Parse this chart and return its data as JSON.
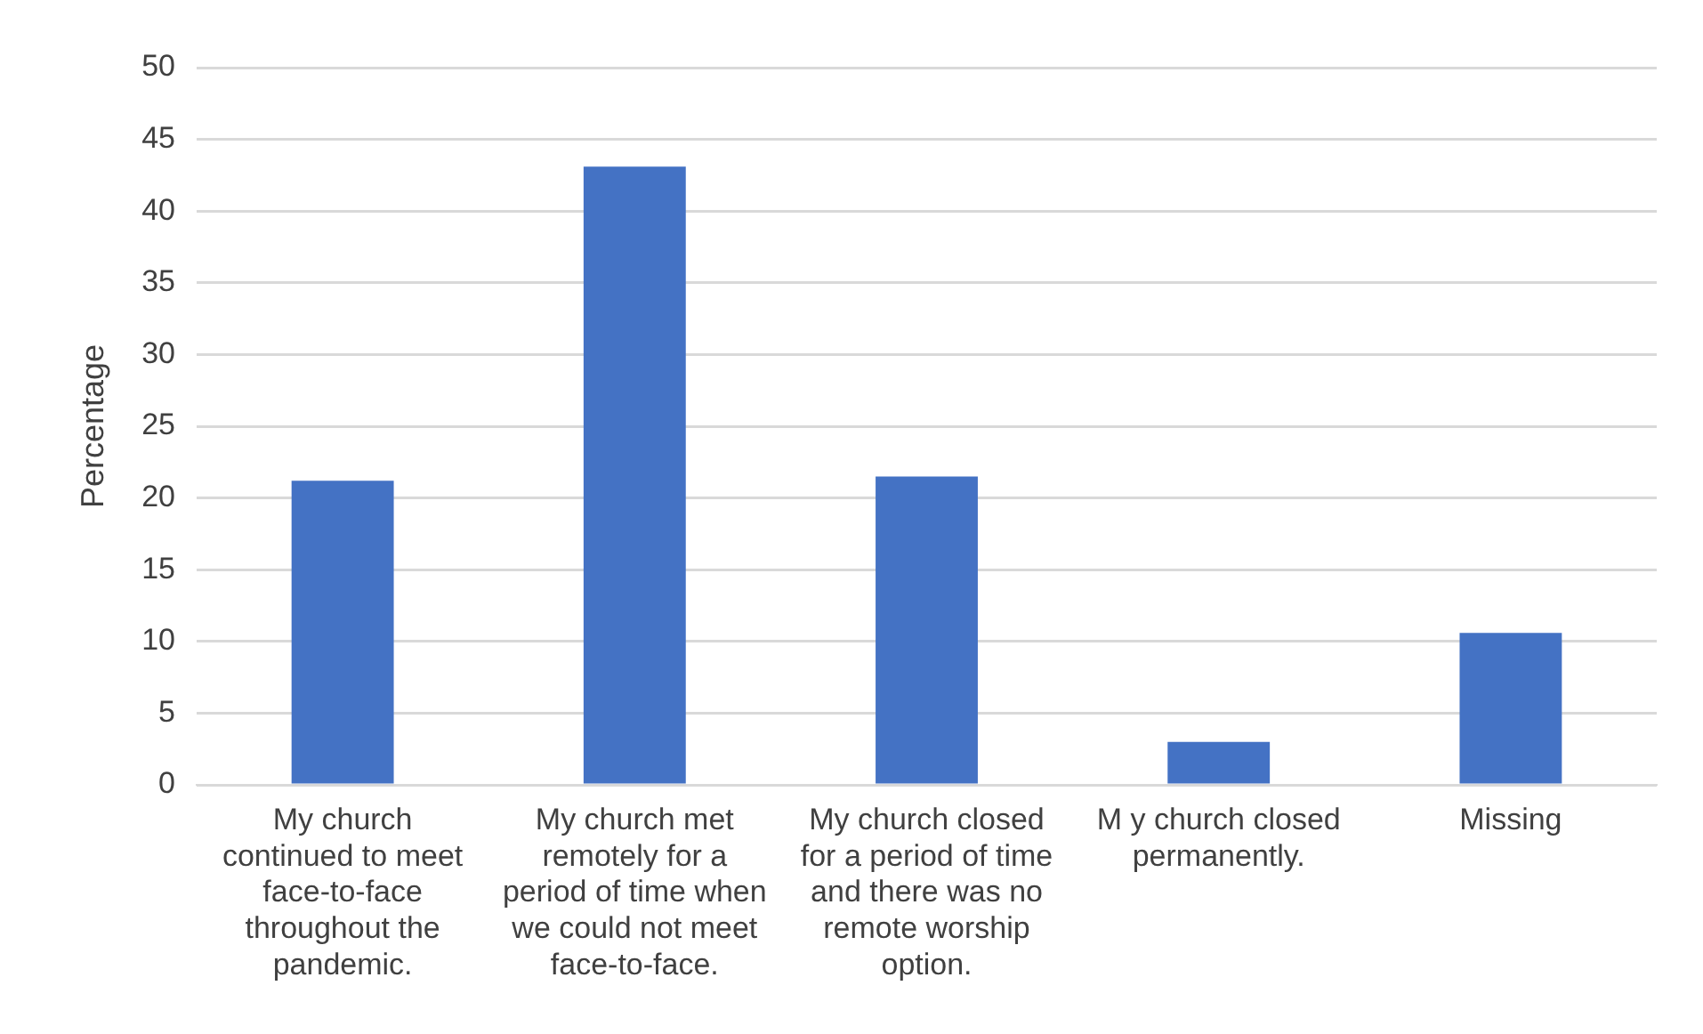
{
  "chart_data": {
    "type": "bar",
    "ylabel": "Percentage",
    "categories": [
      "My church continued to meet face-to-face throughout the pandemic.",
      "My church met remotely for a period of time when we could not meet face-to-face.",
      "My church closed for a period of time and there was no remote worship option.",
      "M y church closed permanently.",
      "Missing"
    ],
    "values": [
      21.2,
      43.1,
      21.5,
      3.0,
      10.6
    ],
    "color": "#4472c4",
    "ylim": [
      0,
      50
    ],
    "yticks": [
      0,
      5,
      10,
      15,
      20,
      25,
      30,
      35,
      40,
      45,
      50
    ],
    "grid": "y",
    "legend": false
  }
}
